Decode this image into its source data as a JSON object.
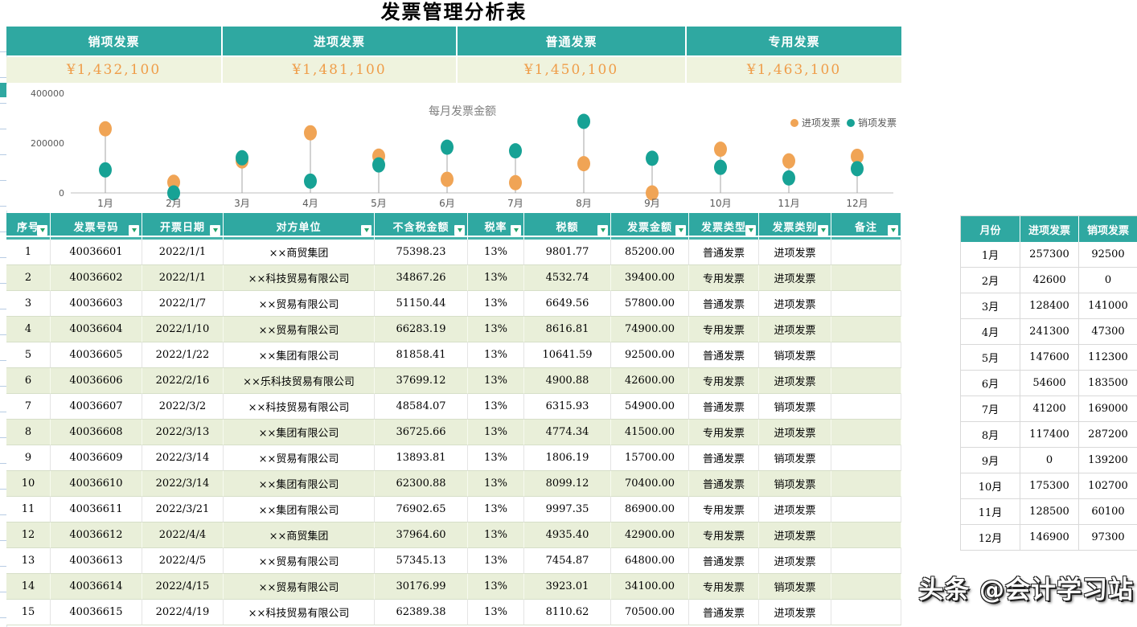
{
  "title": "发票管理分析表",
  "summary_cards": [
    {
      "label": "销项发票",
      "value": "¥1,432,100"
    },
    {
      "label": "进项发票",
      "value": "¥1,481,100"
    },
    {
      "label": "普通发票",
      "value": "¥1,450,100"
    },
    {
      "label": "专用发票",
      "value": "¥1,463,100"
    }
  ],
  "chart_data": {
    "type": "scatter",
    "variant": "lollipop",
    "title": "每月发票金额",
    "categories": [
      "1月",
      "2月",
      "3月",
      "4月",
      "5月",
      "6月",
      "7月",
      "8月",
      "9月",
      "10月",
      "11月",
      "12月"
    ],
    "series": [
      {
        "name": "进项发票",
        "color": "#f0a455",
        "values": [
          257300,
          42600,
          128400,
          241300,
          147600,
          54600,
          41200,
          117400,
          0,
          175300,
          128500,
          146900
        ]
      },
      {
        "name": "销项发票",
        "color": "#17a295",
        "values": [
          92500,
          0,
          141000,
          47300,
          112300,
          183500,
          169000,
          287200,
          139200,
          102700,
          60100,
          97300
        ]
      }
    ],
    "ylim": [
      0,
      400000
    ],
    "yticks": [
      0,
      200000,
      400000
    ],
    "legend_position": "top-right",
    "grid": false
  },
  "invoice_table": {
    "headers": [
      "序号",
      "发票号码",
      "开票日期",
      "对方单位",
      "不含税金额",
      "税率",
      "税额",
      "发票金额",
      "发票类型",
      "发票类别",
      "备注"
    ],
    "rows": [
      [
        "1",
        "40036601",
        "2022/1/1",
        "××商贸集团",
        "75398.23",
        "13%",
        "9801.77",
        "85200.00",
        "普通发票",
        "进项发票",
        ""
      ],
      [
        "2",
        "40036602",
        "2022/1/1",
        "××科技贸易有限公司",
        "34867.26",
        "13%",
        "4532.74",
        "39400.00",
        "专用发票",
        "进项发票",
        ""
      ],
      [
        "3",
        "40036603",
        "2022/1/7",
        "××贸易有限公司",
        "51150.44",
        "13%",
        "6649.56",
        "57800.00",
        "普通发票",
        "进项发票",
        ""
      ],
      [
        "4",
        "40036604",
        "2022/1/10",
        "××贸易有限公司",
        "66283.19",
        "13%",
        "8616.81",
        "74900.00",
        "专用发票",
        "进项发票",
        ""
      ],
      [
        "5",
        "40036605",
        "2022/1/22",
        "××集团有限公司",
        "81858.41",
        "13%",
        "10641.59",
        "92500.00",
        "普通发票",
        "销项发票",
        ""
      ],
      [
        "6",
        "40036606",
        "2022/2/16",
        "××乐科技贸易有限公司",
        "37699.12",
        "13%",
        "4900.88",
        "42600.00",
        "专用发票",
        "进项发票",
        ""
      ],
      [
        "7",
        "40036607",
        "2022/3/2",
        "××科技贸易有限公司",
        "48584.07",
        "13%",
        "6315.93",
        "54900.00",
        "普通发票",
        "销项发票",
        ""
      ],
      [
        "8",
        "40036608",
        "2022/3/13",
        "××集团有限公司",
        "36725.66",
        "13%",
        "4774.34",
        "41500.00",
        "专用发票",
        "进项发票",
        ""
      ],
      [
        "9",
        "40036609",
        "2022/3/14",
        "××贸易有限公司",
        "13893.81",
        "13%",
        "1806.19",
        "15700.00",
        "普通发票",
        "销项发票",
        ""
      ],
      [
        "10",
        "40036610",
        "2022/3/14",
        "××集团有限公司",
        "62300.88",
        "13%",
        "8099.12",
        "70400.00",
        "普通发票",
        "销项发票",
        ""
      ],
      [
        "11",
        "40036611",
        "2022/3/21",
        "××集团有限公司",
        "76902.65",
        "13%",
        "9997.35",
        "86900.00",
        "专用发票",
        "进项发票",
        ""
      ],
      [
        "12",
        "40036612",
        "2022/4/4",
        "××商贸集团",
        "37964.60",
        "13%",
        "4935.40",
        "42900.00",
        "专用发票",
        "进项发票",
        ""
      ],
      [
        "13",
        "40036613",
        "2022/4/5",
        "××贸易有限公司",
        "57345.13",
        "13%",
        "7454.87",
        "64800.00",
        "普通发票",
        "进项发票",
        ""
      ],
      [
        "14",
        "40036614",
        "2022/4/15",
        "××贸易有限公司",
        "30176.99",
        "13%",
        "3923.01",
        "34100.00",
        "专用发票",
        "销项发票",
        ""
      ],
      [
        "15",
        "40036615",
        "2022/4/19",
        "××科技贸易有限公司",
        "62389.38",
        "13%",
        "8110.62",
        "70500.00",
        "普通发票",
        "进项发票",
        ""
      ]
    ]
  },
  "monthly_table": {
    "headers": [
      "月份",
      "进项发票",
      "销项发票"
    ],
    "rows": [
      [
        "1月",
        "257300",
        "92500"
      ],
      [
        "2月",
        "42600",
        "0"
      ],
      [
        "3月",
        "128400",
        "141000"
      ],
      [
        "4月",
        "241300",
        "47300"
      ],
      [
        "5月",
        "147600",
        "112300"
      ],
      [
        "6月",
        "54600",
        "183500"
      ],
      [
        "7月",
        "41200",
        "169000"
      ],
      [
        "8月",
        "117400",
        "287200"
      ],
      [
        "9月",
        "0",
        "139200"
      ],
      [
        "10月",
        "175300",
        "102700"
      ],
      [
        "11月",
        "128500",
        "60100"
      ],
      [
        "12月",
        "146900",
        "97300"
      ]
    ]
  },
  "watermark": "头条 @会计学习站",
  "colors": {
    "teal_header": "#2fa8a1",
    "cream_band": "#eff3de",
    "orange_value": "#ef9d49",
    "alt_row": "#e9efd9",
    "dot_jinxiang": "#f0a455",
    "dot_xiaoxiang": "#17a295",
    "axis_line": "#bfbfbf",
    "stem": "#a6a6a6",
    "label_gray": "#595959",
    "chart_title_gray": "#7f7f7f"
  }
}
